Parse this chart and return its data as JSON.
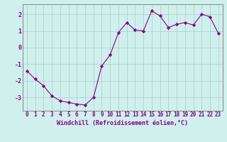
{
  "x": [
    0,
    1,
    2,
    3,
    4,
    5,
    6,
    7,
    8,
    9,
    10,
    11,
    12,
    13,
    14,
    15,
    16,
    17,
    18,
    19,
    20,
    21,
    22,
    23
  ],
  "y": [
    -1.4,
    -1.9,
    -2.3,
    -2.9,
    -3.2,
    -3.3,
    -3.4,
    -3.45,
    -3.0,
    -1.1,
    -0.45,
    0.9,
    1.5,
    1.05,
    1.0,
    2.2,
    1.9,
    1.2,
    1.4,
    1.5,
    1.35,
    2.0,
    1.85,
    0.85
  ],
  "line_color": "#880088",
  "marker": "D",
  "marker_size": 2.2,
  "bg_color": "#cff0ec",
  "grid_color": "#aacccc",
  "axis_color": "#880088",
  "spine_color": "#888888",
  "xlabel": "Windchill (Refroidissement éolien,°C)",
  "ylim": [
    -3.8,
    2.6
  ],
  "xlim": [
    -0.5,
    23.5
  ],
  "yticks": [
    -3,
    -2,
    -1,
    0,
    1,
    2
  ],
  "xticks": [
    0,
    1,
    2,
    3,
    4,
    5,
    6,
    7,
    8,
    9,
    10,
    11,
    12,
    13,
    14,
    15,
    16,
    17,
    18,
    19,
    20,
    21,
    22,
    23
  ],
  "tick_fontsize": 5.5,
  "label_fontsize": 6.0
}
